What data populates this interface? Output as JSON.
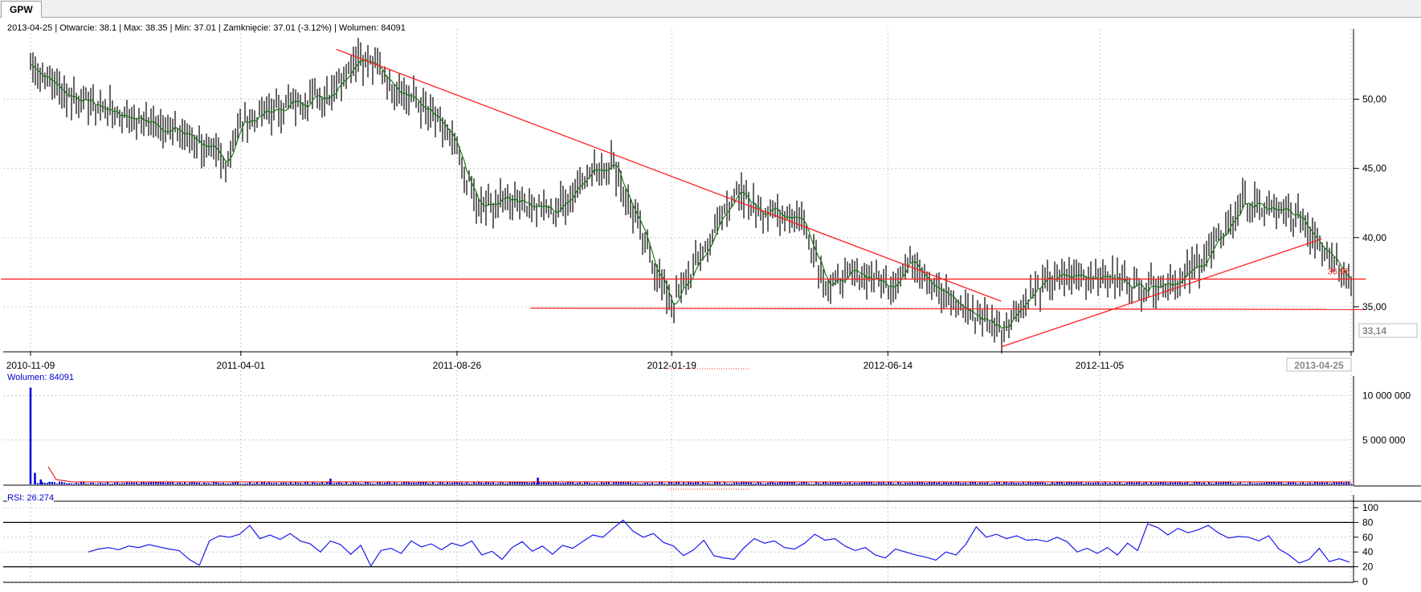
{
  "tab": {
    "label": "GPW"
  },
  "info": {
    "price_line": "2013-04-25 | Otwarcie: 38.1 | Max: 38.35 | Min: 37.01 | Zamknięcie: 37.01 (-3.12%)  | Wolumen: 84091",
    "volume_line": "Wolumen: 84091",
    "rsi_line": "RSI: 26.274"
  },
  "colors": {
    "price_bars": "#000000",
    "moving_average": "#1a7a1a",
    "trendlines": "#ff2020",
    "volume_bars": "#0000dd",
    "volume_average": "#dd0000",
    "rsi_line": "#1a1aee",
    "grid": "#c8c8c8"
  },
  "chart_data": [
    {
      "type": "line",
      "name": "price",
      "x_ticks": [
        "2010-11-09",
        "2011-04-01",
        "2011-08-26",
        "2012-01-19",
        "2012-06-14",
        "2012-11-05",
        "2013-04-25"
      ],
      "ylim": [
        31.8,
        54.5
      ],
      "y_ticks": [
        "50,00",
        "45,00",
        "40,00",
        "35,00"
      ],
      "grid": true,
      "x": [
        "2010-11-09",
        "2010-12-01",
        "2011-01-01",
        "2011-02-01",
        "2011-03-01",
        "2011-03-20",
        "2011-04-01",
        "2011-05-01",
        "2011-06-01",
        "2011-06-20",
        "2011-07-10",
        "2011-08-01",
        "2011-08-20",
        "2011-09-10",
        "2011-10-01",
        "2011-11-01",
        "2011-11-20",
        "2011-12-10",
        "2012-01-01",
        "2012-01-19",
        "2012-02-10",
        "2012-03-01",
        "2012-03-20",
        "2012-04-15",
        "2012-05-05",
        "2012-05-25",
        "2012-06-14",
        "2012-07-01",
        "2012-07-20",
        "2012-08-10",
        "2012-08-30",
        "2012-09-15",
        "2012-10-01",
        "2012-10-20",
        "2012-11-05",
        "2012-12-01",
        "2013-01-01",
        "2013-01-20",
        "2013-02-10",
        "2013-02-28",
        "2013-03-20",
        "2013-04-10",
        "2013-04-25"
      ],
      "values": [
        52.5,
        50.5,
        49.2,
        48.2,
        47.2,
        45.3,
        48.3,
        49.5,
        50.5,
        53.2,
        51.5,
        49.5,
        47.5,
        42.0,
        43.0,
        41.8,
        44.5,
        45.5,
        39.5,
        35.0,
        39.0,
        43.2,
        42.0,
        41.5,
        36.5,
        37.5,
        36.5,
        38.5,
        36.0,
        34.5,
        33.5,
        35.5,
        37.0,
        37.2,
        37.3,
        36.5,
        37.0,
        39.0,
        42.5,
        42.0,
        41.5,
        39.0,
        37.01
      ],
      "annotations": [
        {
          "label": "36,95",
          "color": "#ff2020"
        },
        {
          "label": "33,14",
          "color": "#888888"
        },
        {
          "label": "2013-04-25",
          "color": "#888888"
        }
      ],
      "trendlines": [
        {
          "from": [
            "2011-06-05",
            53.6
          ],
          "to": [
            "2012-08-30",
            35.4
          ]
        },
        {
          "from": [
            "2012-08-30",
            32.1
          ],
          "to": [
            "2013-04-05",
            39.9
          ]
        },
        {
          "from": [
            "2011-10-15",
            34.9
          ],
          "to": [
            "2013-05-05",
            34.8
          ]
        },
        {
          "from": [
            "2010-10-20",
            37.0
          ],
          "to": [
            "2013-05-05",
            37.0
          ]
        }
      ]
    },
    {
      "type": "bar",
      "name": "volume",
      "ylim": [
        0,
        11500000
      ],
      "y_ticks": [
        "10 000 000",
        "5 000 000"
      ],
      "x": [
        "2010-11-09",
        "2010-11-12",
        "2010-11-16",
        "2010-11-22",
        "2011-06-01",
        "2011-10-20"
      ],
      "values": [
        10900000,
        1300000,
        550000,
        300000,
        650000,
        750000
      ],
      "baseline": 120000
    },
    {
      "type": "line",
      "name": "RSI",
      "ylim": [
        0,
        100
      ],
      "y_ticks": [
        "100",
        "80",
        "60",
        "40",
        "20",
        "0"
      ],
      "levels": [
        80,
        20
      ],
      "values": [
        40,
        44,
        46,
        43,
        48,
        46,
        50,
        47,
        44,
        42,
        30,
        22,
        55,
        62,
        60,
        64,
        76,
        58,
        63,
        57,
        65,
        55,
        51,
        40,
        55,
        50,
        37,
        49,
        21,
        42,
        45,
        38,
        55,
        47,
        51,
        43,
        52,
        48,
        55,
        36,
        41,
        30,
        46,
        54,
        41,
        48,
        37,
        49,
        45,
        54,
        63,
        60,
        72,
        83,
        68,
        60,
        65,
        53,
        48,
        35,
        43,
        56,
        35,
        32,
        30,
        46,
        58,
        52,
        55,
        46,
        44,
        52,
        64,
        56,
        58,
        48,
        42,
        46,
        36,
        32,
        44,
        40,
        36,
        33,
        29,
        40,
        36,
        51,
        74,
        60,
        64,
        58,
        62,
        56,
        57,
        54,
        60,
        54,
        40,
        45,
        38,
        46,
        36,
        52,
        42,
        78,
        73,
        63,
        72,
        66,
        70,
        76,
        66,
        59,
        61,
        60,
        55,
        62,
        44,
        36,
        25,
        30,
        45,
        27,
        31,
        26.274
      ]
    }
  ]
}
